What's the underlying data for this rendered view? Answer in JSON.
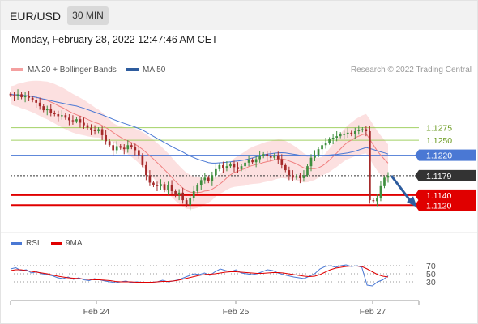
{
  "header": {
    "symbol": "EUR/USD",
    "timeframe": "30 MIN",
    "datetime": "Monday, February 28, 2022 12:47:46 AM CET"
  },
  "legend": [
    {
      "label": "MA 20 + Bollinger Bands",
      "color": "#f08080"
    },
    {
      "label": "MA 50",
      "color": "#2e5c9e"
    }
  ],
  "rsi_legend": [
    {
      "label": "RSI",
      "color": "#4a78d4"
    },
    {
      "label": "9MA",
      "color": "#e00000"
    }
  ],
  "copyright": "Research © 2022 Trading Central",
  "chart_data": {
    "type": "candlestick",
    "price_scale": [
      1.1075,
      1.1375
    ],
    "x_ticks": [
      "Feb 24",
      "Feb 25",
      "Feb 27"
    ],
    "levels": [
      {
        "label": "1.1275",
        "value": 1.1275,
        "kind": "resistance"
      },
      {
        "label": "1.1250",
        "value": 1.125,
        "kind": "resistance"
      },
      {
        "label": "1.1220",
        "value": 1.122,
        "kind": "pivot"
      },
      {
        "label": "1.1179",
        "value": 1.1179,
        "kind": "last"
      },
      {
        "label": "1.1140",
        "value": 1.114,
        "kind": "support"
      },
      {
        "label": "1.1120",
        "value": 1.112,
        "kind": "support"
      }
    ],
    "level_colors": {
      "resistance": "#8cc63e",
      "pivot": "#4a78d4",
      "last": "#333333",
      "support": "#e00000"
    },
    "level_label_colors": {
      "resistance": "#6a9a1f",
      "pivot": "#ffffff",
      "last": "#ffffff",
      "support": "#ffffff"
    },
    "close": [
      1.134,
      1.1338,
      1.1342,
      1.1336,
      1.1339,
      1.1335,
      1.133,
      1.1325,
      1.1318,
      1.131,
      1.1312,
      1.1305,
      1.1302,
      1.1298,
      1.13,
      1.1295,
      1.129,
      1.1288,
      1.1292,
      1.1285,
      1.128,
      1.1275,
      1.127,
      1.1268,
      1.1272,
      1.126,
      1.1248,
      1.124,
      1.123,
      1.1238,
      1.1235,
      1.1232,
      1.124,
      1.1236,
      1.123,
      1.122,
      1.12,
      1.118,
      1.1165,
      1.116,
      1.1158,
      1.1162,
      1.115,
      1.116,
      1.1148,
      1.114,
      1.1145,
      1.113,
      1.112,
      1.1135,
      1.1148,
      1.116,
      1.117,
      1.1175,
      1.1168,
      1.118,
      1.1192,
      1.12,
      1.1195,
      1.1198,
      1.1202,
      1.1196,
      1.1192,
      1.1198,
      1.1205,
      1.121,
      1.1206,
      1.1212,
      1.1218,
      1.1222,
      1.1218,
      1.1215,
      1.122,
      1.1212,
      1.12,
      1.119,
      1.118,
      1.1175,
      1.1178,
      1.1174,
      1.118,
      1.1198,
      1.1215,
      1.122,
      1.1232,
      1.124,
      1.1245,
      1.1252,
      1.1255,
      1.1258,
      1.1262,
      1.1262,
      1.1265,
      1.1262,
      1.1268,
      1.127,
      1.1272,
      1.1268,
      1.113,
      1.1128,
      1.1135,
      1.1158,
      1.1175,
      1.1179
    ],
    "ma20_start": 1.133,
    "ma20_end": 1.1235,
    "ma50_start": 1.1345,
    "ma50_end": 1.1218,
    "rsi": {
      "range": [
        0,
        100
      ],
      "ticks": [
        70,
        50,
        30
      ],
      "rsi_values": [
        62,
        65,
        58,
        60,
        52,
        55,
        50,
        48,
        45,
        40,
        38,
        42,
        36,
        40,
        35,
        33,
        38,
        35,
        32,
        30,
        28,
        30,
        32,
        28,
        30,
        29,
        27,
        29,
        30,
        34,
        30,
        32,
        35,
        40,
        45,
        50,
        48,
        52,
        46,
        55,
        62,
        58,
        55,
        60,
        52,
        50,
        48,
        50,
        55,
        60,
        58,
        52,
        48,
        45,
        42,
        40,
        38,
        44,
        50,
        62,
        68,
        70,
        66,
        70,
        72,
        68,
        70,
        66,
        22,
        20,
        30,
        35,
        45
      ],
      "ma_values": [
        58,
        60,
        60,
        58,
        56,
        54,
        52,
        50,
        47,
        44,
        42,
        40,
        39,
        38,
        37,
        36,
        35,
        35,
        34,
        33,
        31,
        30,
        30,
        30,
        29,
        29,
        29,
        29,
        30,
        31,
        31,
        32,
        34,
        37,
        40,
        43,
        46,
        48,
        49,
        50,
        52,
        54,
        55,
        55,
        54,
        53,
        52,
        51,
        51,
        52,
        53,
        53,
        52,
        50,
        48,
        46,
        44,
        43,
        44,
        48,
        54,
        60,
        64,
        66,
        68,
        69,
        69,
        68,
        62,
        55,
        48,
        44,
        42
      ]
    }
  }
}
